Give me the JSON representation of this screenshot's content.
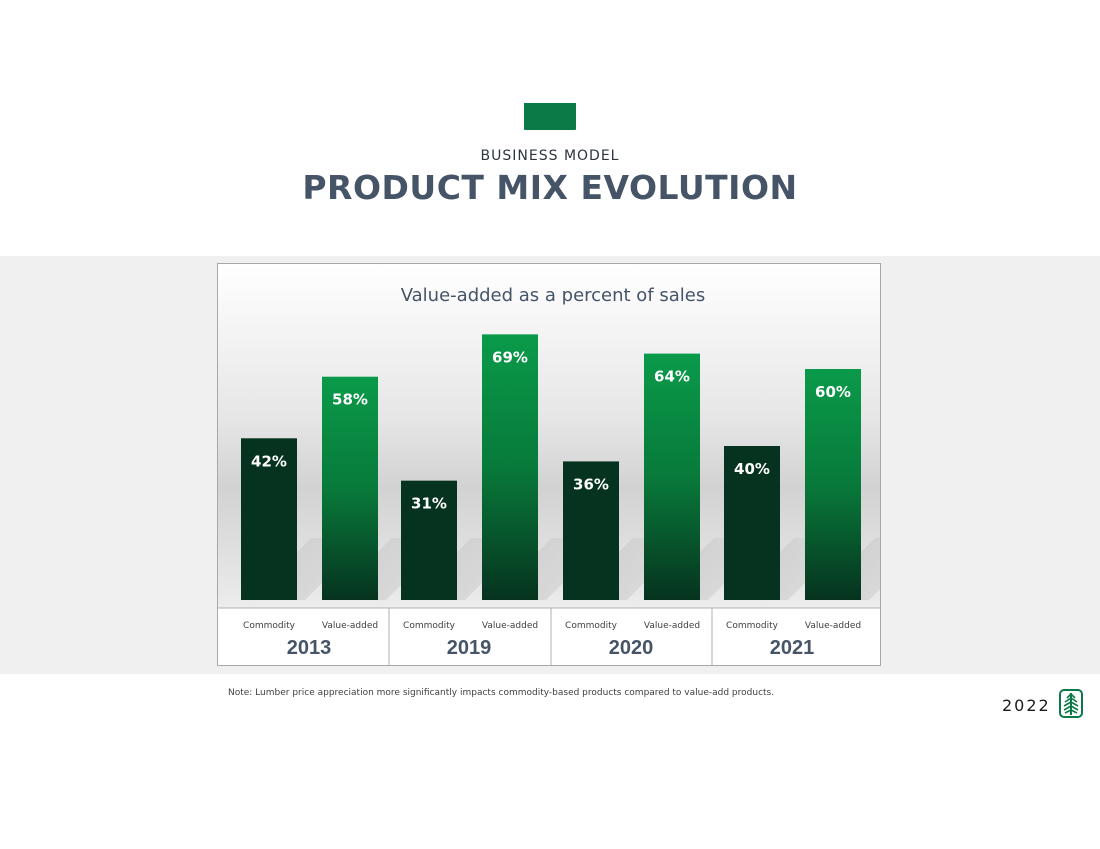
{
  "header": {
    "eyebrow": "BUSINESS MODEL",
    "title": "PRODUCT MIX EVOLUTION"
  },
  "colors": {
    "accent": "#0b7a47",
    "commodity_bar": "#06331f",
    "value_added_bar_top": "#0a9a4a",
    "value_added_bar_bottom": "#06331f",
    "title_text": "#455467"
  },
  "chart_data": {
    "type": "bar",
    "title": "Value-added as a percent of sales",
    "unit": "%",
    "ylim": [
      0,
      80
    ],
    "categories": [
      "2013",
      "2019",
      "2020",
      "2021"
    ],
    "series": [
      {
        "name": "Commodity",
        "values": [
          42,
          31,
          36,
          40
        ],
        "labels": [
          "42%",
          "31%",
          "36%",
          "40%"
        ]
      },
      {
        "name": "Value-added",
        "values": [
          58,
          69,
          64,
          60
        ],
        "labels": [
          "58%",
          "69%",
          "64%",
          "60%"
        ]
      }
    ]
  },
  "footer": {
    "note": "Note:  Lumber price appreciation more significantly impacts commodity-based products compared to value-add products.",
    "year": "2022",
    "logo_icon": "tree-icon"
  }
}
